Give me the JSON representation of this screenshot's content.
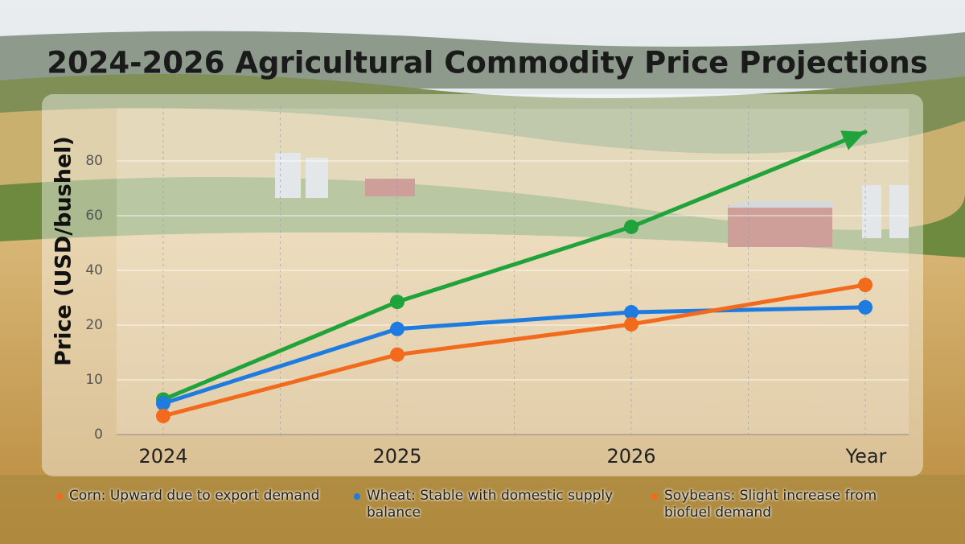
{
  "chart_data": {
    "type": "line",
    "title": "2024-2026 Agricultural Commodity Price Projections",
    "y_label": "Price (USD/bushel)",
    "x_label": "Year",
    "categories": [
      "2024",
      "2025",
      "2026",
      null
    ],
    "series": [
      {
        "color": "#1fa33a",
        "values": [
          6.4,
          28.5,
          55.9,
          90.6
        ],
        "markers": [
          true,
          true,
          true,
          false
        ],
        "end_arrow": true
      },
      {
        "color": "#1e7be0",
        "values": [
          5.7,
          19.3,
          24.7,
          26.5
        ],
        "markers": [
          true,
          true,
          true,
          true
        ],
        "end_arrow": false
      },
      {
        "color": "#f26b1d",
        "values": [
          3.4,
          14.6,
          20.3,
          34.7
        ],
        "markers": [
          true,
          true,
          true,
          true
        ],
        "end_arrow": false
      }
    ],
    "ylim": [
      0,
      100
    ],
    "yticks": [
      0,
      10,
      20,
      40,
      60,
      80
    ],
    "grid": true,
    "annotations": [
      {
        "text": "Corn: Upward due to export demand",
        "color": "#f26b1d"
      },
      {
        "text": "Wheat: Stable with domestic supply balance",
        "color": "#1e7be0"
      },
      {
        "text": "Soybeans: Slight increase from biofuel demand",
        "color": "#f26b1d"
      }
    ]
  }
}
